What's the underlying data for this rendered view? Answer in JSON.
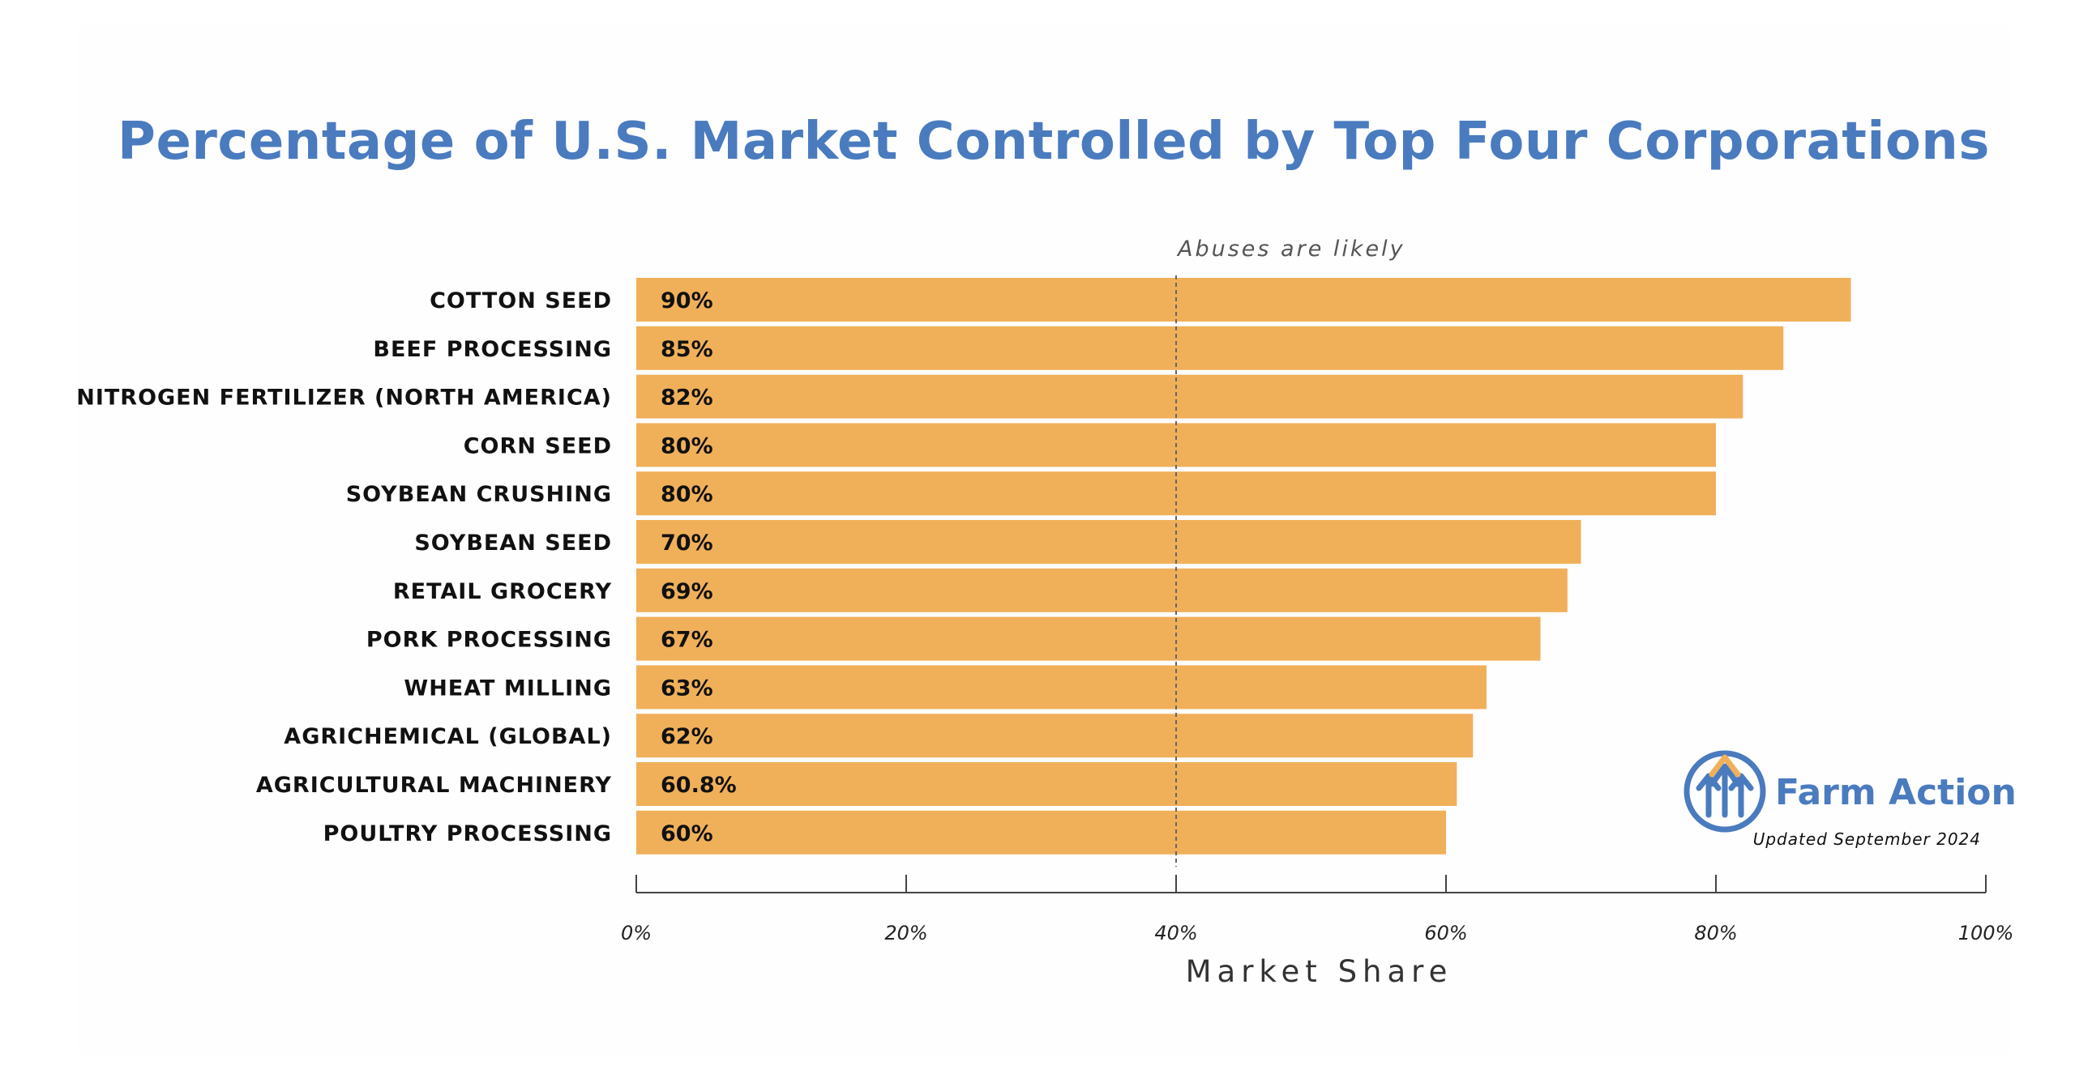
{
  "chart_data": {
    "type": "bar",
    "orientation": "horizontal",
    "title": "Percentage of U.S. Market Controlled by Top Four Corporations",
    "xlabel": "Market Share",
    "ylabel": "",
    "xlim": [
      0,
      100
    ],
    "x_ticks": [
      "0%",
      "20%",
      "40%",
      "60%",
      "80%",
      "100%"
    ],
    "x_tick_values": [
      0,
      20,
      40,
      60,
      80,
      100
    ],
    "categories": [
      "COTTON SEED",
      "BEEF PROCESSING",
      "NITROGEN FERTILIZER (NORTH AMERICA)",
      "CORN SEED",
      "SOYBEAN CRUSHING",
      "SOYBEAN SEED",
      "RETAIL GROCERY",
      "PORK PROCESSING",
      "WHEAT MILLING",
      "AGRICHEMICAL (GLOBAL)",
      "AGRICULTURAL MACHINERY",
      "POULTRY PROCESSING"
    ],
    "values": [
      90,
      85,
      82,
      80,
      80,
      70,
      69,
      67,
      63,
      62,
      60.8,
      60
    ],
    "data_labels": [
      "90%",
      "85%",
      "82%",
      "80%",
      "80%",
      "70%",
      "69%",
      "67%",
      "63%",
      "62%",
      "60.8%",
      "60%"
    ],
    "reference_line": {
      "value": 40,
      "label": "Abuses are likely"
    },
    "bar_color": "#f0b05a",
    "grid": false
  },
  "brand": {
    "name": "Farm Action",
    "note": "Updated September 2024",
    "color": "#4a7bbf",
    "accent": "#f0b05a",
    "icon": "farm-action-arrows-logo"
  }
}
